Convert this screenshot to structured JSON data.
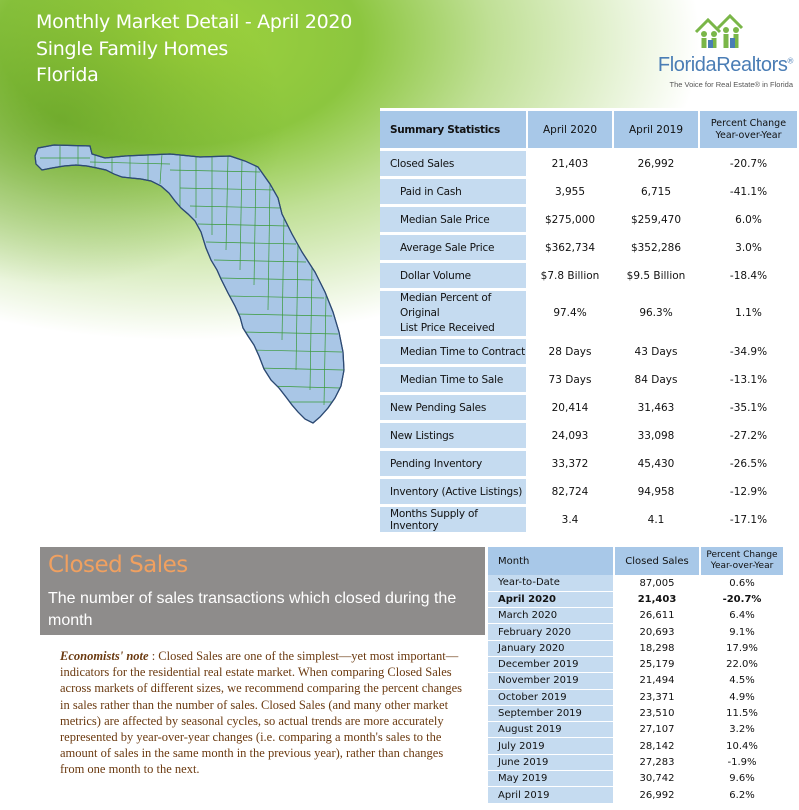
{
  "header": {
    "title": "Monthly Market Detail - April 2020",
    "subtitle": "Single Family Homes",
    "region": "Florida"
  },
  "logo": {
    "name_part1": "Florida",
    "name_part2": "Realtors",
    "tagline": "The Voice for Real Estate® in Florida",
    "color": "#4a7db5",
    "icon": "houses-people-icon"
  },
  "colors": {
    "header_green": "#8cc63f",
    "table_header_blue": "#a8c8e8",
    "table_label_blue": "#c5dbf0",
    "section_gray": "#8e8c8b",
    "section_title_orange": "#f0a060",
    "note_brown": "#6b3a10",
    "map_fill": "#a9c6e6"
  },
  "summary": {
    "headers": {
      "label": "Summary Statistics",
      "col1": "April 2020",
      "col2": "April 2019",
      "pct_line1": "Percent Change",
      "pct_line2": "Year-over-Year"
    },
    "rows": [
      {
        "label": "Closed Sales",
        "a": "21,403",
        "b": "26,992",
        "pct": "-20.7%",
        "sub": false
      },
      {
        "label": "Paid in Cash",
        "a": "3,955",
        "b": "6,715",
        "pct": "-41.1%",
        "sub": true
      },
      {
        "label": "Median Sale Price",
        "a": "$275,000",
        "b": "$259,470",
        "pct": "6.0%",
        "sub": true
      },
      {
        "label": "Average Sale Price",
        "a": "$362,734",
        "b": "$352,286",
        "pct": "3.0%",
        "sub": true
      },
      {
        "label": "Dollar Volume",
        "a": "$7.8 Billion",
        "b": "$9.5 Billion",
        "pct": "-18.4%",
        "sub": true
      },
      {
        "label": "Median Percent of Original",
        "label2": "List Price Received",
        "a": "97.4%",
        "b": "96.3%",
        "pct": "1.1%",
        "sub": true
      },
      {
        "label": "Median Time to Contract",
        "a": "28 Days",
        "b": "43 Days",
        "pct": "-34.9%",
        "sub": true
      },
      {
        "label": "Median Time to Sale",
        "a": "73 Days",
        "b": "84 Days",
        "pct": "-13.1%",
        "sub": true
      },
      {
        "label": "New Pending Sales",
        "a": "20,414",
        "b": "31,463",
        "pct": "-35.1%",
        "sub": false
      },
      {
        "label": "New Listings",
        "a": "24,093",
        "b": "33,098",
        "pct": "-27.2%",
        "sub": false
      },
      {
        "label": "Pending Inventory",
        "a": "33,372",
        "b": "45,430",
        "pct": "-26.5%",
        "sub": false
      },
      {
        "label": "Inventory (Active Listings)",
        "a": "82,724",
        "b": "94,958",
        "pct": "-12.9%",
        "sub": false
      },
      {
        "label": "Months Supply of Inventory",
        "a": "3.4",
        "b": "4.1",
        "pct": "-17.1%",
        "sub": false
      }
    ]
  },
  "closed_sales": {
    "title": "Closed Sales",
    "description": "The number of sales transactions which closed during the month",
    "note_label": "Economists' note",
    "note_text": " :  Closed Sales are one of the simplest—yet most important—indicators for the residential real estate market.  When comparing Closed Sales across markets of different sizes, we recommend comparing the percent changes in sales rather than the number of sales.  Closed Sales (and many other market metrics) are affected by seasonal cycles, so actual trends are more accurately represented by year-over-year changes (i.e. comparing a month's sales to the amount of sales in the same month in the previous year), rather than changes from one month to the next."
  },
  "monthly": {
    "headers": {
      "month": "Month",
      "sales": "Closed Sales",
      "pct_line1": "Percent Change",
      "pct_line2": "Year-over-Year"
    },
    "rows": [
      {
        "month": "Year-to-Date",
        "sales": "87,005",
        "pct": "0.6%",
        "bold": false
      },
      {
        "month": "April 2020",
        "sales": "21,403",
        "pct": "-20.7%",
        "bold": true
      },
      {
        "month": "March 2020",
        "sales": "26,611",
        "pct": "6.4%",
        "bold": false
      },
      {
        "month": "February 2020",
        "sales": "20,693",
        "pct": "9.1%",
        "bold": false
      },
      {
        "month": "January 2020",
        "sales": "18,298",
        "pct": "17.9%",
        "bold": false
      },
      {
        "month": "December 2019",
        "sales": "25,179",
        "pct": "22.0%",
        "bold": false
      },
      {
        "month": "November 2019",
        "sales": "21,494",
        "pct": "4.5%",
        "bold": false
      },
      {
        "month": "October 2019",
        "sales": "23,371",
        "pct": "4.9%",
        "bold": false
      },
      {
        "month": "September 2019",
        "sales": "23,510",
        "pct": "11.5%",
        "bold": false
      },
      {
        "month": "August 2019",
        "sales": "27,107",
        "pct": "3.2%",
        "bold": false
      },
      {
        "month": "July 2019",
        "sales": "28,142",
        "pct": "10.4%",
        "bold": false
      },
      {
        "month": "June 2019",
        "sales": "27,283",
        "pct": "-1.9%",
        "bold": false
      },
      {
        "month": "May 2019",
        "sales": "30,742",
        "pct": "9.6%",
        "bold": false
      },
      {
        "month": "April 2019",
        "sales": "26,992",
        "pct": "6.2%",
        "bold": false
      }
    ]
  }
}
